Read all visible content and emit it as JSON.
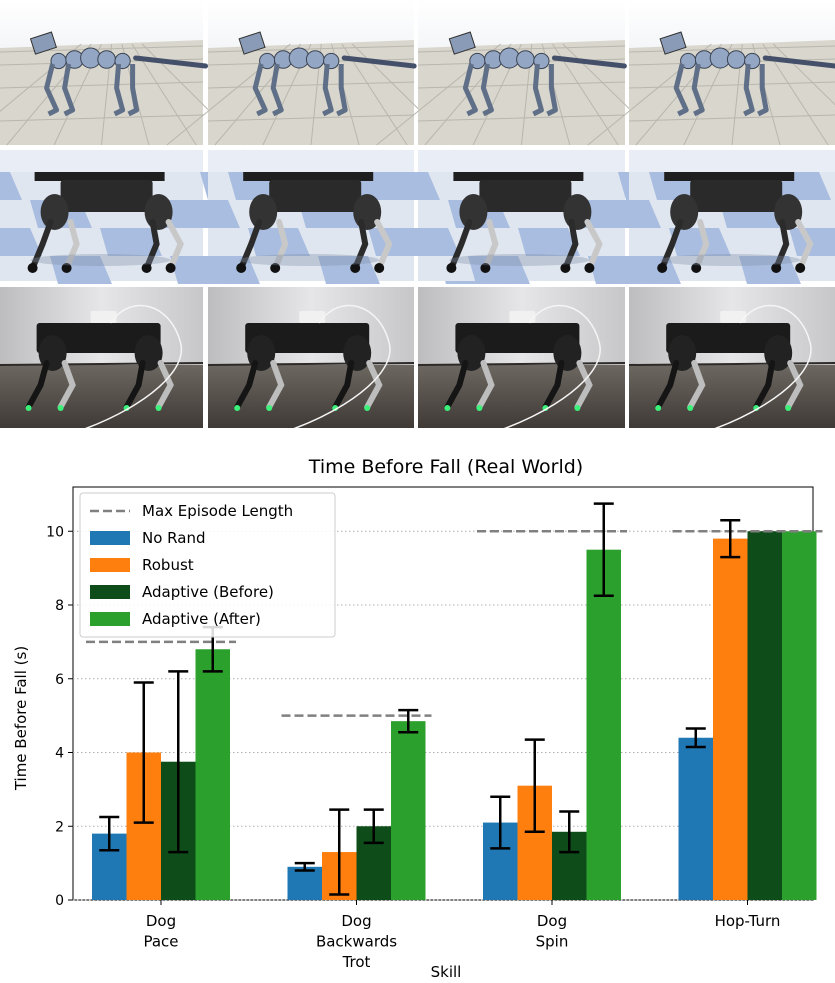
{
  "figure": {
    "panel_rows": [
      "simulation-humanoid-dog",
      "simulation-robot",
      "real-world-robot"
    ],
    "panel_columns": 4
  },
  "chart_data": {
    "type": "bar",
    "title": "Time Before Fall (Real World)",
    "xlabel": "Skill",
    "ylabel": "Time Before Fall (s)",
    "ylim": [
      0,
      11.2
    ],
    "yticks": [
      0,
      2,
      4,
      6,
      8,
      10
    ],
    "grid": "y-dotted",
    "legend_position": "top-left",
    "categories": [
      [
        "Dog",
        "Pace"
      ],
      [
        "Dog",
        "Backwards",
        "Trot"
      ],
      [
        "Dog",
        "Spin"
      ],
      [
        "Hop-Turn"
      ]
    ],
    "series": [
      {
        "name": "No Rand",
        "color": "#1f77b4",
        "values": [
          1.8,
          0.9,
          2.1,
          4.4
        ],
        "errors": [
          0.45,
          0.1,
          0.7,
          0.25
        ]
      },
      {
        "name": "Robust",
        "color": "#ff7f0e",
        "values": [
          4.0,
          1.3,
          3.1,
          9.8
        ],
        "errors": [
          1.9,
          1.15,
          1.25,
          0.5
        ]
      },
      {
        "name": "Adaptive (Before)",
        "color": "#0e4c19",
        "values": [
          3.75,
          2.0,
          1.85,
          10.0
        ],
        "errors": [
          2.45,
          0.45,
          0.55,
          0.0
        ]
      },
      {
        "name": "Adaptive (After)",
        "color": "#2ca02c",
        "values": [
          6.8,
          4.85,
          9.5,
          10.0
        ],
        "errors": [
          0.6,
          0.3,
          1.25,
          0.0
        ]
      }
    ],
    "reference": {
      "name": "Max Episode Length",
      "color": "#808080",
      "values": [
        7,
        5,
        10,
        10
      ]
    }
  }
}
